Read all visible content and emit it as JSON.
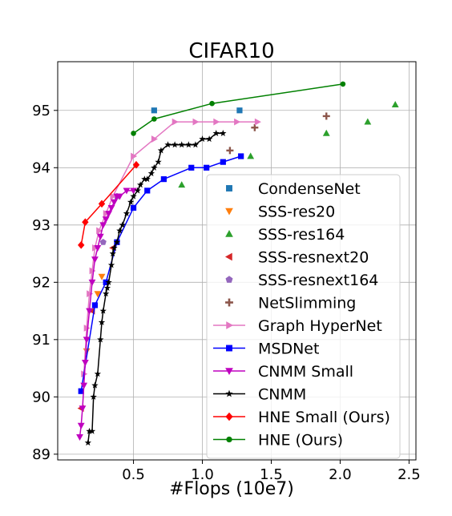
{
  "chart_data": {
    "type": "scatter",
    "title": "CIFAR10",
    "xlabel": "#Flops (10e7)",
    "ylabel": "",
    "xlim": [
      -0.05,
      2.55
    ],
    "ylim": [
      88.9,
      95.85
    ],
    "xticks": [
      0.5,
      1.0,
      1.5,
      2.0,
      2.5
    ],
    "xtick_labels": [
      "0.5",
      "1.0",
      "1.5",
      "2.0",
      "2.5"
    ],
    "yticks": [
      89,
      90,
      91,
      92,
      93,
      94,
      95
    ],
    "ytick_labels": [
      "89",
      "90",
      "91",
      "92",
      "93",
      "94",
      "95"
    ],
    "grid": true,
    "legend_position": "lower-right",
    "series": [
      {
        "name": "CondenseNet",
        "kind": "scatter",
        "marker": "square",
        "color": "#1f77b4",
        "x": [
          0.65,
          1.27
        ],
        "y": [
          95.0,
          95.0
        ]
      },
      {
        "name": "SSS-res20",
        "kind": "scatter",
        "marker": "triangle-down",
        "color": "#ff7f0e",
        "x": [
          0.16,
          0.24,
          0.27
        ],
        "y": [
          90.8,
          91.8,
          92.1
        ]
      },
      {
        "name": "SSS-res164",
        "kind": "scatter",
        "marker": "triangle-up",
        "color": "#2ca02c",
        "x": [
          0.85,
          1.35,
          1.9,
          2.2,
          2.4
        ],
        "y": [
          93.7,
          94.2,
          94.6,
          94.8,
          95.1
        ]
      },
      {
        "name": "SSS-resnext20",
        "kind": "scatter",
        "marker": "triangle-left",
        "color": "#d62728",
        "x": [
          0.12,
          0.2,
          0.35
        ],
        "y": [
          89.8,
          91.5,
          92.6
        ]
      },
      {
        "name": "SSS-resnext164",
        "kind": "scatter",
        "marker": "pentagon",
        "color": "#9467bd",
        "x": [
          0.28,
          0.38
        ],
        "y": [
          92.7,
          93.5
        ]
      },
      {
        "name": "NetSlimming",
        "kind": "scatter",
        "marker": "plus",
        "color": "#8c564b",
        "x": [
          1.2,
          1.38,
          1.9
        ],
        "y": [
          94.3,
          94.7,
          94.9
        ]
      },
      {
        "name": "Graph HyperNet",
        "kind": "line",
        "marker": "triangle-right",
        "color": "#e377c2",
        "x": [
          0.14,
          0.16,
          0.18,
          0.2,
          0.22,
          0.25,
          0.3,
          0.35,
          0.5,
          0.65,
          0.8,
          0.95,
          1.1,
          1.25,
          1.4
        ],
        "y": [
          90.4,
          91.2,
          91.8,
          92.2,
          92.6,
          92.9,
          93.2,
          93.5,
          94.2,
          94.5,
          94.8,
          94.8,
          94.8,
          94.8,
          94.8
        ]
      },
      {
        "name": "MSDNet",
        "kind": "line",
        "marker": "square",
        "color": "#0000ff",
        "x": [
          0.12,
          0.22,
          0.3,
          0.38,
          0.5,
          0.6,
          0.72,
          0.92,
          1.03,
          1.15,
          1.28
        ],
        "y": [
          90.1,
          91.6,
          92.0,
          92.7,
          93.3,
          93.6,
          93.8,
          94.0,
          94.0,
          94.1,
          94.2
        ]
      },
      {
        "name": "CNMM Small",
        "kind": "line",
        "marker": "triangle-down",
        "color": "#bf00bf",
        "x": [
          0.11,
          0.12,
          0.13,
          0.14,
          0.15,
          0.16,
          0.18,
          0.2,
          0.22,
          0.24,
          0.26,
          0.28,
          0.3,
          0.32,
          0.34,
          0.36,
          0.38,
          0.4,
          0.45,
          0.5
        ],
        "y": [
          89.3,
          89.5,
          89.8,
          90.2,
          90.6,
          91.0,
          91.5,
          92.0,
          92.4,
          92.6,
          92.8,
          93.0,
          93.1,
          93.2,
          93.3,
          93.4,
          93.5,
          93.5,
          93.6,
          93.6
        ]
      },
      {
        "name": "CNMM",
        "kind": "line",
        "marker": "star",
        "color": "#000000",
        "x": [
          0.17,
          0.18,
          0.2,
          0.21,
          0.22,
          0.24,
          0.26,
          0.27,
          0.28,
          0.3,
          0.31,
          0.32,
          0.34,
          0.35,
          0.36,
          0.38,
          0.4,
          0.42,
          0.45,
          0.48,
          0.5,
          0.53,
          0.55,
          0.58,
          0.6,
          0.63,
          0.65,
          0.68,
          0.7,
          0.75,
          0.8,
          0.85,
          0.9,
          0.95,
          1.0,
          1.05,
          1.1,
          1.15
        ],
        "y": [
          89.2,
          89.4,
          89.4,
          90.0,
          90.2,
          90.4,
          91.0,
          91.3,
          91.5,
          91.8,
          91.9,
          92.0,
          92.3,
          92.5,
          92.6,
          92.7,
          92.9,
          93.0,
          93.2,
          93.4,
          93.5,
          93.6,
          93.7,
          93.8,
          93.8,
          93.9,
          94.0,
          94.1,
          94.3,
          94.4,
          94.4,
          94.4,
          94.4,
          94.4,
          94.5,
          94.5,
          94.6,
          94.6
        ]
      },
      {
        "name": "HNE Small (Ours)",
        "kind": "line",
        "marker": "diamond",
        "color": "#ff0000",
        "x": [
          0.12,
          0.15,
          0.27,
          0.52
        ],
        "y": [
          92.65,
          93.05,
          93.37,
          94.05
        ]
      },
      {
        "name": "HNE (Ours)",
        "kind": "line",
        "marker": "circle",
        "color": "#008000",
        "x": [
          0.5,
          0.65,
          1.07,
          2.02
        ],
        "y": [
          94.6,
          94.85,
          95.12,
          95.46
        ]
      }
    ]
  }
}
